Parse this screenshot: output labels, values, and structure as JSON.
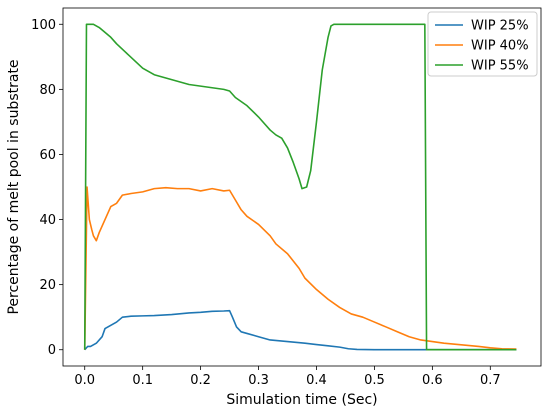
{
  "chart_data": {
    "type": "line",
    "title": "",
    "xlabel": "Simulation time (Sec)",
    "ylabel": "Percentage of melt pool in substrate",
    "xlim": [
      -0.0375,
      0.7875
    ],
    "ylim": [
      -5,
      105
    ],
    "x_ticks": [
      0.0,
      0.1,
      0.2,
      0.3,
      0.4,
      0.5,
      0.6,
      0.7
    ],
    "x_tick_labels": [
      "0.0",
      "0.1",
      "0.2",
      "0.3",
      "0.4",
      "0.5",
      "0.6",
      "0.7"
    ],
    "y_ticks": [
      0,
      20,
      40,
      60,
      80,
      100
    ],
    "y_tick_labels": [
      "0",
      "20",
      "40",
      "60",
      "80",
      "100"
    ],
    "grid": false,
    "legend_position": "top-right",
    "series": [
      {
        "name": "WIP 25%",
        "color": "#1f77b4",
        "points": [
          [
            0.0,
            0
          ],
          [
            0.005,
            1
          ],
          [
            0.01,
            1
          ],
          [
            0.02,
            2
          ],
          [
            0.03,
            4
          ],
          [
            0.035,
            6.5
          ],
          [
            0.045,
            7.5
          ],
          [
            0.055,
            8.5
          ],
          [
            0.065,
            10
          ],
          [
            0.08,
            10.3
          ],
          [
            0.1,
            10.4
          ],
          [
            0.12,
            10.5
          ],
          [
            0.15,
            10.8
          ],
          [
            0.18,
            11.3
          ],
          [
            0.2,
            11.5
          ],
          [
            0.22,
            11.8
          ],
          [
            0.24,
            11.9
          ],
          [
            0.25,
            12
          ],
          [
            0.255,
            10
          ],
          [
            0.262,
            7
          ],
          [
            0.27,
            5.5
          ],
          [
            0.28,
            5
          ],
          [
            0.3,
            4
          ],
          [
            0.32,
            3
          ],
          [
            0.35,
            2.5
          ],
          [
            0.38,
            2
          ],
          [
            0.4,
            1.6
          ],
          [
            0.42,
            1.2
          ],
          [
            0.44,
            0.8
          ],
          [
            0.455,
            0.3
          ],
          [
            0.47,
            0.1
          ],
          [
            0.5,
            0
          ],
          [
            0.6,
            0
          ],
          [
            0.7,
            0
          ],
          [
            0.745,
            0
          ]
        ]
      },
      {
        "name": "WIP 40%",
        "color": "#ff7f0e",
        "points": [
          [
            0.0,
            0
          ],
          [
            0.004,
            50
          ],
          [
            0.008,
            40
          ],
          [
            0.012,
            37
          ],
          [
            0.015,
            35
          ],
          [
            0.02,
            33.5
          ],
          [
            0.025,
            36
          ],
          [
            0.035,
            40
          ],
          [
            0.045,
            44
          ],
          [
            0.055,
            45
          ],
          [
            0.065,
            47.5
          ],
          [
            0.08,
            48
          ],
          [
            0.1,
            48.5
          ],
          [
            0.12,
            49.5
          ],
          [
            0.14,
            49.8
          ],
          [
            0.16,
            49.5
          ],
          [
            0.18,
            49.5
          ],
          [
            0.2,
            48.8
          ],
          [
            0.22,
            49.5
          ],
          [
            0.24,
            48.8
          ],
          [
            0.25,
            49
          ],
          [
            0.26,
            46
          ],
          [
            0.27,
            43
          ],
          [
            0.28,
            41
          ],
          [
            0.3,
            38.5
          ],
          [
            0.32,
            35
          ],
          [
            0.33,
            32.5
          ],
          [
            0.35,
            29.5
          ],
          [
            0.37,
            25
          ],
          [
            0.38,
            22
          ],
          [
            0.4,
            18.5
          ],
          [
            0.42,
            15.5
          ],
          [
            0.44,
            13
          ],
          [
            0.46,
            11
          ],
          [
            0.48,
            10
          ],
          [
            0.5,
            8.5
          ],
          [
            0.52,
            7
          ],
          [
            0.54,
            5.5
          ],
          [
            0.56,
            4
          ],
          [
            0.58,
            3
          ],
          [
            0.6,
            2.5
          ],
          [
            0.62,
            2
          ],
          [
            0.65,
            1.5
          ],
          [
            0.68,
            1
          ],
          [
            0.7,
            0.6
          ],
          [
            0.72,
            0.3
          ],
          [
            0.745,
            0.2
          ]
        ]
      },
      {
        "name": "WIP 55%",
        "color": "#2ca02c",
        "points": [
          [
            0.0,
            0
          ],
          [
            0.003,
            100
          ],
          [
            0.015,
            100
          ],
          [
            0.025,
            99
          ],
          [
            0.035,
            97.5
          ],
          [
            0.045,
            96
          ],
          [
            0.055,
            94
          ],
          [
            0.07,
            91.5
          ],
          [
            0.085,
            89
          ],
          [
            0.1,
            86.5
          ],
          [
            0.12,
            84.5
          ],
          [
            0.14,
            83.5
          ],
          [
            0.16,
            82.5
          ],
          [
            0.18,
            81.5
          ],
          [
            0.2,
            81
          ],
          [
            0.22,
            80.5
          ],
          [
            0.24,
            80
          ],
          [
            0.25,
            79.5
          ],
          [
            0.26,
            77.5
          ],
          [
            0.28,
            75
          ],
          [
            0.3,
            71.5
          ],
          [
            0.32,
            67.5
          ],
          [
            0.33,
            66
          ],
          [
            0.34,
            65
          ],
          [
            0.35,
            62
          ],
          [
            0.36,
            57.5
          ],
          [
            0.365,
            55
          ],
          [
            0.37,
            52.5
          ],
          [
            0.375,
            49.5
          ],
          [
            0.383,
            50
          ],
          [
            0.39,
            55
          ],
          [
            0.4,
            70
          ],
          [
            0.41,
            86
          ],
          [
            0.42,
            96
          ],
          [
            0.425,
            99.5
          ],
          [
            0.43,
            100
          ],
          [
            0.5,
            100
          ],
          [
            0.55,
            100
          ],
          [
            0.587,
            100
          ],
          [
            0.59,
            0
          ],
          [
            0.6,
            0
          ],
          [
            0.7,
            0
          ],
          [
            0.745,
            0
          ]
        ]
      }
    ]
  }
}
